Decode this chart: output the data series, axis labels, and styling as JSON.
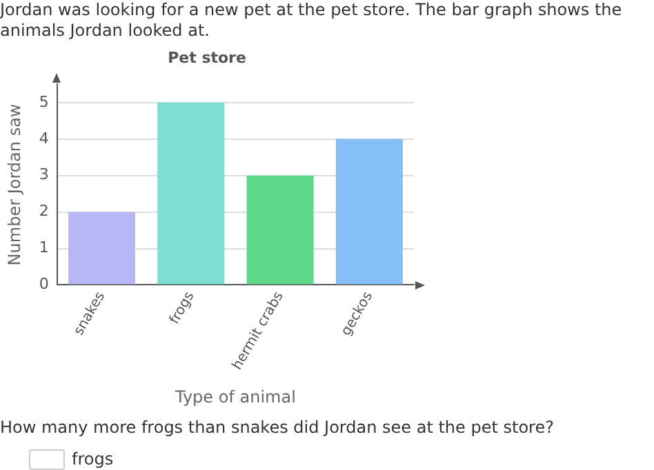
{
  "chart_data": {
    "type": "bar",
    "title": "Pet store",
    "xlabel": "Type of animal",
    "ylabel": "Number Jordan saw",
    "categories": [
      "snakes",
      "frogs",
      "hermit crabs",
      "geckos"
    ],
    "values": [
      2,
      5,
      3,
      4
    ],
    "colors": [
      "#b8b6f7",
      "#7ddfd2",
      "#5cd888",
      "#86bff7"
    ],
    "ylim": [
      0,
      5.5
    ],
    "yticks": [
      0,
      1,
      2,
      3,
      4,
      5
    ],
    "grid": "y",
    "annotations": [
      "Jordan was looking for a new pet at the pet store. The bar graph shows the animals Jordan looked at.",
      "How many more frogs than snakes did Jordan see at the pet store?",
      "frogs"
    ]
  }
}
